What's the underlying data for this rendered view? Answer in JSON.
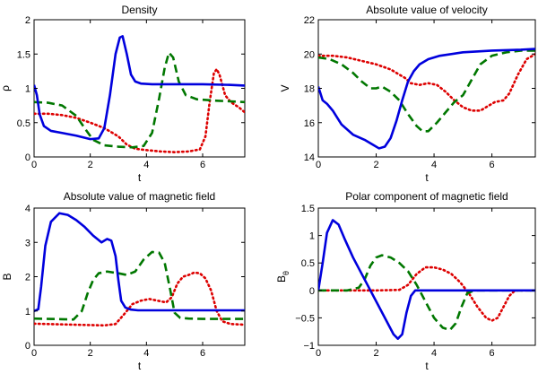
{
  "chart_data": [
    {
      "type": "line",
      "title": "Density",
      "xlabel": "t",
      "ylabel": "ρ",
      "xlim": [
        0,
        7.5
      ],
      "ylim": [
        0,
        2
      ],
      "xticks": [
        "0",
        "2",
        "4",
        "6"
      ],
      "yticks": [
        "0",
        "0.5",
        "1",
        "1.5",
        "2"
      ],
      "xtick_values": [
        0,
        2,
        4,
        6
      ],
      "ytick_values": [
        0,
        0.5,
        1,
        1.5,
        2
      ],
      "grid": false,
      "series": [
        {
          "color": "#0000dd",
          "dash": "solid",
          "x": [
            0,
            0.1,
            0.2,
            0.35,
            0.6,
            1.0,
            1.5,
            2.0,
            2.3,
            2.5,
            2.7,
            2.9,
            3.05,
            3.15,
            3.3,
            3.45,
            3.6,
            3.8,
            4.2,
            5,
            6,
            7,
            7.5
          ],
          "y": [
            1.05,
            0.9,
            0.62,
            0.45,
            0.38,
            0.35,
            0.31,
            0.26,
            0.27,
            0.42,
            0.9,
            1.5,
            1.74,
            1.76,
            1.5,
            1.2,
            1.1,
            1.07,
            1.06,
            1.06,
            1.06,
            1.05,
            1.04
          ]
        },
        {
          "color": "#007700",
          "dash": "dashed",
          "x": [
            0,
            0.5,
            1.0,
            1.5,
            1.8,
            2.1,
            2.5,
            3.0,
            3.5,
            3.9,
            4.2,
            4.45,
            4.65,
            4.8,
            4.95,
            5.15,
            5.4,
            5.8,
            6.5,
            7.5
          ],
          "y": [
            0.8,
            0.79,
            0.75,
            0.6,
            0.42,
            0.25,
            0.17,
            0.15,
            0.14,
            0.16,
            0.35,
            0.85,
            1.3,
            1.52,
            1.45,
            1.1,
            0.9,
            0.84,
            0.82,
            0.8
          ]
        },
        {
          "color": "#dd0000",
          "dash": "dotted",
          "x": [
            0,
            0.5,
            1.0,
            1.5,
            2.0,
            2.5,
            3.0,
            3.3,
            3.6,
            4.0,
            4.5,
            5.0,
            5.5,
            5.9,
            6.1,
            6.25,
            6.4,
            6.5,
            6.6,
            6.8,
            7.0,
            7.3,
            7.5
          ],
          "y": [
            0.63,
            0.63,
            0.61,
            0.57,
            0.5,
            0.42,
            0.3,
            0.18,
            0.12,
            0.1,
            0.08,
            0.07,
            0.08,
            0.11,
            0.3,
            0.8,
            1.22,
            1.28,
            1.2,
            0.9,
            0.8,
            0.72,
            0.65
          ]
        }
      ]
    },
    {
      "type": "line",
      "title": "Absolute value of velocity",
      "xlabel": "t",
      "ylabel": "V",
      "xlim": [
        0,
        7.5
      ],
      "ylim": [
        14,
        22
      ],
      "xticks": [
        "0",
        "2",
        "4",
        "6"
      ],
      "yticks": [
        "14",
        "16",
        "18",
        "20",
        "22"
      ],
      "xtick_values": [
        0,
        2,
        4,
        6
      ],
      "ytick_values": [
        14,
        16,
        18,
        20,
        22
      ],
      "grid": false,
      "series": [
        {
          "color": "#0000dd",
          "dash": "solid",
          "x": [
            0,
            0.15,
            0.3,
            0.5,
            0.8,
            1.2,
            1.6,
            1.9,
            2.1,
            2.3,
            2.5,
            2.7,
            2.9,
            3.1,
            3.3,
            3.5,
            3.8,
            4.2,
            5,
            6,
            7,
            7.5
          ],
          "y": [
            18.1,
            17.3,
            17.1,
            16.7,
            15.9,
            15.3,
            15.0,
            14.7,
            14.5,
            14.6,
            15.1,
            16.1,
            17.3,
            18.4,
            19.0,
            19.4,
            19.7,
            19.9,
            20.1,
            20.2,
            20.25,
            20.3
          ]
        },
        {
          "color": "#007700",
          "dash": "dashed",
          "x": [
            0,
            0.4,
            0.8,
            1.2,
            1.5,
            1.8,
            2.0,
            2.2,
            2.5,
            2.8,
            3.1,
            3.4,
            3.6,
            3.8,
            4.1,
            4.4,
            4.7,
            5.0,
            5.3,
            5.6,
            6.0,
            6.5,
            7.0,
            7.5
          ],
          "y": [
            19.8,
            19.7,
            19.4,
            18.9,
            18.4,
            18.0,
            18.0,
            18.1,
            17.8,
            17.3,
            16.5,
            15.8,
            15.5,
            15.5,
            16.0,
            16.6,
            17.2,
            17.6,
            18.5,
            19.4,
            19.9,
            20.1,
            20.2,
            20.2
          ]
        },
        {
          "color": "#dd0000",
          "dash": "dotted",
          "x": [
            0,
            0.5,
            1.0,
            1.5,
            2.0,
            2.5,
            3.0,
            3.2,
            3.5,
            3.8,
            4.1,
            4.4,
            4.7,
            5.0,
            5.3,
            5.6,
            5.8,
            6.1,
            6.4,
            6.6,
            6.9,
            7.2,
            7.5
          ],
          "y": [
            19.9,
            19.9,
            19.8,
            19.6,
            19.4,
            19.1,
            18.6,
            18.3,
            18.2,
            18.3,
            18.2,
            17.8,
            17.3,
            16.9,
            16.7,
            16.7,
            16.9,
            17.2,
            17.3,
            17.7,
            18.8,
            19.7,
            20.0
          ]
        }
      ]
    },
    {
      "type": "line",
      "title": "Absolute value of magnetic field",
      "xlabel": "t",
      "ylabel": "B",
      "xlim": [
        0,
        7.5
      ],
      "ylim": [
        0,
        4
      ],
      "xticks": [
        "0",
        "2",
        "4",
        "6"
      ],
      "yticks": [
        "0",
        "1",
        "2",
        "3",
        "4"
      ],
      "xtick_values": [
        0,
        2,
        4,
        6
      ],
      "ytick_values": [
        0,
        1,
        2,
        3,
        4
      ],
      "grid": false,
      "series": [
        {
          "color": "#0000dd",
          "dash": "solid",
          "x": [
            0,
            0.15,
            0.25,
            0.4,
            0.6,
            0.9,
            1.2,
            1.5,
            1.8,
            2.1,
            2.4,
            2.6,
            2.75,
            2.9,
            3.0,
            3.1,
            3.25,
            3.45,
            3.7,
            4.2,
            5,
            6,
            7.5
          ],
          "y": [
            1.0,
            1.05,
            1.7,
            2.9,
            3.6,
            3.85,
            3.8,
            3.65,
            3.45,
            3.2,
            3.0,
            3.1,
            3.05,
            2.6,
            1.9,
            1.3,
            1.1,
            1.04,
            1.02,
            1.02,
            1.02,
            1.02,
            1.02
          ]
        },
        {
          "color": "#007700",
          "dash": "dashed",
          "x": [
            0,
            0.5,
            1.0,
            1.4,
            1.7,
            1.9,
            2.1,
            2.3,
            2.6,
            3.0,
            3.3,
            3.6,
            3.9,
            4.2,
            4.45,
            4.65,
            4.85,
            5.0,
            5.2,
            5.5,
            6,
            7.5
          ],
          "y": [
            0.78,
            0.77,
            0.76,
            0.75,
            1.0,
            1.5,
            1.9,
            2.1,
            2.15,
            2.1,
            2.05,
            2.15,
            2.5,
            2.72,
            2.7,
            2.4,
            1.6,
            0.95,
            0.8,
            0.78,
            0.77,
            0.77
          ]
        },
        {
          "color": "#dd0000",
          "dash": "dotted",
          "x": [
            0,
            0.5,
            1.0,
            1.5,
            2.0,
            2.5,
            2.9,
            3.2,
            3.5,
            3.8,
            4.1,
            4.4,
            4.7,
            4.9,
            5.1,
            5.3,
            5.5,
            5.7,
            5.9,
            6.1,
            6.3,
            6.5,
            6.7,
            7.0,
            7.5
          ],
          "y": [
            0.63,
            0.62,
            0.61,
            0.6,
            0.59,
            0.58,
            0.62,
            0.9,
            1.2,
            1.3,
            1.35,
            1.3,
            1.25,
            1.4,
            1.8,
            2.0,
            2.05,
            2.12,
            2.1,
            1.95,
            1.6,
            1.0,
            0.7,
            0.62,
            0.6
          ]
        }
      ]
    },
    {
      "type": "line",
      "title": "Polar component of magnetic field",
      "xlabel": "t",
      "ylabel": "B",
      "ylabel_sub": "θ",
      "xlim": [
        0,
        7.5
      ],
      "ylim": [
        -1,
        1.5
      ],
      "xticks": [
        "0",
        "2",
        "4",
        "6"
      ],
      "yticks": [
        "−1",
        "−0.5",
        "0",
        "0.5",
        "1",
        "1.5"
      ],
      "xtick_values": [
        0,
        2,
        4,
        6
      ],
      "ytick_values": [
        -1,
        -0.5,
        0,
        0.5,
        1,
        1.5
      ],
      "grid": false,
      "series": [
        {
          "color": "#0000dd",
          "dash": "solid",
          "x": [
            0,
            0.15,
            0.3,
            0.5,
            0.7,
            0.9,
            1.2,
            1.5,
            1.8,
            2.1,
            2.4,
            2.6,
            2.75,
            2.9,
            3.05,
            3.2,
            3.35,
            3.6,
            4,
            5,
            6,
            7.5
          ],
          "y": [
            0,
            0.5,
            1.05,
            1.28,
            1.2,
            0.95,
            0.6,
            0.3,
            0.0,
            -0.3,
            -0.6,
            -0.8,
            -0.88,
            -0.8,
            -0.4,
            -0.1,
            0.0,
            0.0,
            0.0,
            0.0,
            0.0,
            0.0
          ]
        },
        {
          "color": "#007700",
          "dash": "dashed",
          "x": [
            0,
            0.5,
            1.0,
            1.4,
            1.6,
            1.8,
            2.0,
            2.2,
            2.5,
            2.8,
            3.1,
            3.4,
            3.7,
            4.0,
            4.3,
            4.55,
            4.75,
            4.95,
            5.15,
            5.4,
            6,
            7.5
          ],
          "y": [
            0,
            0,
            0,
            0.05,
            0.2,
            0.45,
            0.6,
            0.64,
            0.6,
            0.5,
            0.35,
            0.1,
            -0.2,
            -0.5,
            -0.68,
            -0.72,
            -0.6,
            -0.3,
            -0.05,
            0,
            0,
            0
          ]
        },
        {
          "color": "#dd0000",
          "dash": "dotted",
          "x": [
            0,
            1.0,
            2.0,
            2.8,
            3.1,
            3.4,
            3.7,
            4.0,
            4.3,
            4.6,
            4.9,
            5.2,
            5.5,
            5.8,
            6.0,
            6.2,
            6.4,
            6.6,
            6.8,
            7.0,
            7.5
          ],
          "y": [
            0,
            0,
            0,
            0.01,
            0.1,
            0.3,
            0.42,
            0.42,
            0.38,
            0.3,
            0.15,
            -0.05,
            -0.3,
            -0.5,
            -0.55,
            -0.5,
            -0.3,
            -0.1,
            0.0,
            0.0,
            0.0
          ]
        }
      ]
    }
  ]
}
